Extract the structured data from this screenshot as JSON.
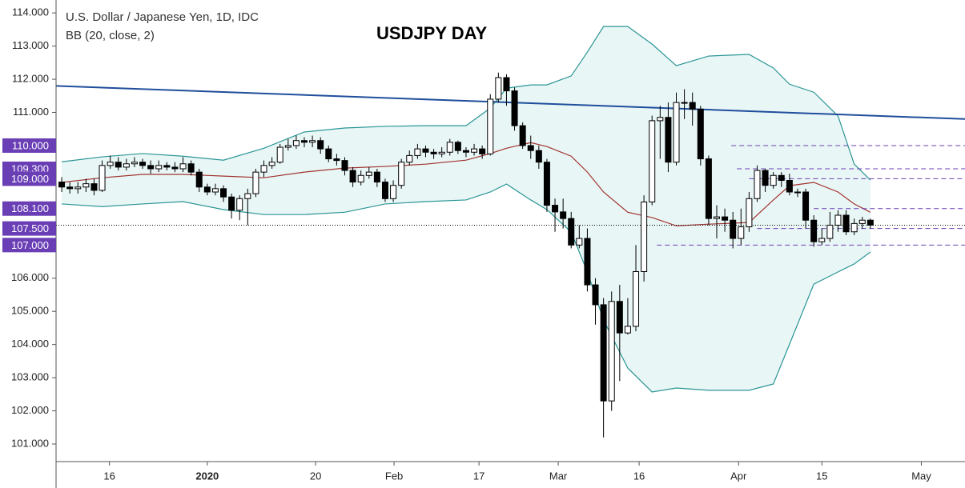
{
  "chart_data": {
    "type": "candlestick",
    "title": "USDJPY DAY",
    "subtitle": "U.S. Dollar / Japanese Yen, 1D, IDC",
    "indicator": "BB (20, close, 2)",
    "up_color": "#ffffff",
    "down_color": "#000000",
    "open": [
      108.9,
      108.75,
      108.7,
      108.75,
      108.85,
      108.65,
      109.4,
      109.5,
      109.35,
      109.45,
      109.5,
      109.4,
      109.3,
      109.4,
      109.35,
      109.3,
      109.45,
      109.2,
      108.75,
      108.6,
      108.7,
      108.45,
      108.05,
      108.4,
      108.55,
      109.2,
      109.4,
      109.5,
      109.95,
      110.0,
      110.15,
      110.1,
      110.15,
      109.9,
      109.6,
      109.55,
      109.25,
      108.9,
      109.1,
      109.2,
      108.9,
      108.4,
      108.8,
      109.5,
      109.7,
      109.9,
      109.8,
      109.75,
      109.8,
      110.1,
      109.85,
      109.8,
      109.9,
      109.75,
      111.4,
      112.05,
      111.65,
      110.6,
      110.0,
      109.85,
      109.5,
      108.2,
      108.0,
      107.8,
      107.0,
      107.2,
      105.8,
      105.2,
      102.3,
      105.3,
      104.35,
      104.55,
      106.2,
      108.3,
      110.75,
      110.85,
      109.5,
      111.3,
      111.3,
      111.1,
      109.6,
      107.8,
      107.85,
      107.75,
      107.2,
      107.55,
      108.4,
      109.25,
      108.8,
      109.1,
      108.95,
      108.6,
      108.6,
      107.75,
      107.1,
      107.2,
      107.6,
      107.9,
      107.4,
      107.65,
      107.75
    ],
    "high": [
      109.05,
      108.9,
      108.9,
      109.0,
      109.0,
      109.55,
      109.7,
      109.65,
      109.6,
      109.65,
      109.6,
      109.55,
      109.55,
      109.5,
      109.5,
      109.65,
      109.55,
      109.3,
      108.85,
      108.85,
      108.8,
      108.55,
      108.5,
      108.7,
      109.3,
      109.55,
      109.65,
      110.05,
      110.2,
      110.3,
      110.25,
      110.3,
      110.25,
      110.0,
      109.75,
      109.65,
      109.35,
      109.25,
      109.35,
      109.3,
      109.0,
      108.95,
      109.6,
      109.85,
      110.05,
      110.0,
      109.9,
      109.95,
      110.2,
      110.15,
      109.95,
      110.05,
      110.0,
      111.55,
      112.2,
      112.15,
      111.75,
      110.7,
      110.3,
      110.0,
      109.6,
      108.4,
      108.4,
      108.0,
      107.6,
      107.5,
      106.0,
      105.4,
      105.6,
      105.8,
      105.4,
      107.0,
      108.5,
      110.9,
      111.2,
      111.3,
      111.6,
      111.7,
      111.6,
      111.2,
      109.7,
      108.2,
      108.1,
      108.0,
      108.1,
      108.6,
      109.4,
      109.3,
      109.2,
      109.2,
      109.15,
      108.7,
      108.7,
      107.9,
      107.5,
      108.0,
      108.05,
      108.05,
      107.8,
      107.85,
      107.8
    ],
    "low": [
      108.6,
      108.55,
      108.55,
      108.6,
      108.5,
      108.6,
      109.3,
      109.25,
      109.25,
      109.35,
      109.3,
      109.15,
      109.2,
      109.25,
      109.2,
      109.2,
      109.1,
      108.6,
      108.5,
      108.5,
      108.3,
      107.8,
      107.75,
      107.6,
      108.45,
      109.05,
      109.3,
      109.45,
      109.85,
      109.9,
      109.95,
      109.95,
      109.75,
      109.5,
      109.4,
      109.1,
      108.75,
      108.8,
      109.0,
      108.75,
      108.3,
      108.3,
      108.7,
      109.4,
      109.6,
      109.65,
      109.6,
      109.65,
      109.7,
      109.75,
      109.65,
      109.7,
      109.6,
      109.7,
      111.3,
      111.2,
      110.45,
      109.9,
      109.6,
      109.3,
      108.0,
      107.4,
      107.5,
      106.9,
      106.9,
      105.6,
      104.6,
      101.2,
      102.0,
      102.9,
      104.3,
      104.4,
      105.9,
      108.2,
      109.6,
      109.2,
      109.4,
      110.8,
      110.6,
      109.4,
      107.6,
      107.2,
      107.4,
      106.9,
      107.0,
      107.4,
      108.3,
      108.6,
      108.7,
      108.75,
      108.5,
      108.45,
      107.5,
      106.95,
      107.0,
      107.1,
      107.4,
      107.3,
      107.3,
      107.5,
      107.5
    ],
    "close": [
      108.75,
      108.7,
      108.75,
      108.85,
      108.65,
      109.4,
      109.5,
      109.35,
      109.45,
      109.5,
      109.4,
      109.3,
      109.4,
      109.35,
      109.3,
      109.45,
      109.2,
      108.75,
      108.6,
      108.7,
      108.45,
      108.05,
      108.4,
      108.55,
      109.2,
      109.4,
      109.5,
      109.95,
      110.0,
      110.15,
      110.1,
      110.15,
      109.9,
      109.6,
      109.55,
      109.25,
      108.9,
      109.1,
      109.2,
      108.9,
      108.4,
      108.8,
      109.5,
      109.7,
      109.9,
      109.8,
      109.75,
      109.8,
      110.1,
      109.85,
      109.8,
      109.9,
      109.75,
      111.4,
      112.05,
      111.65,
      110.6,
      110.0,
      109.85,
      109.5,
      108.2,
      108.0,
      107.8,
      107.0,
      107.2,
      105.8,
      105.2,
      102.3,
      105.3,
      104.35,
      104.55,
      106.2,
      108.3,
      110.75,
      110.85,
      109.5,
      111.3,
      111.3,
      111.1,
      109.6,
      107.8,
      107.85,
      107.75,
      107.2,
      107.55,
      108.4,
      109.25,
      108.8,
      109.1,
      108.95,
      108.6,
      108.6,
      107.75,
      107.1,
      107.2,
      107.6,
      107.9,
      107.4,
      107.65,
      107.75,
      107.6
    ],
    "bands": {
      "x": [
        0,
        5,
        10,
        15,
        20,
        25,
        30,
        35,
        40,
        45,
        50,
        53,
        55,
        58,
        60,
        63,
        65,
        67,
        70,
        73,
        76,
        80,
        85,
        88,
        90,
        93,
        96,
        98,
        100
      ],
      "upper": [
        109.51,
        109.66,
        109.76,
        109.68,
        109.56,
        109.92,
        110.41,
        110.53,
        110.58,
        110.6,
        110.6,
        111.13,
        111.73,
        111.83,
        111.83,
        112.1,
        112.82,
        113.59,
        113.59,
        113.06,
        112.41,
        112.7,
        112.75,
        112.34,
        111.85,
        111.61,
        110.89,
        109.44,
        108.96
      ],
      "middle": [
        108.89,
        109.03,
        109.13,
        109.13,
        109.08,
        109.03,
        109.2,
        109.32,
        109.37,
        109.44,
        109.56,
        109.76,
        109.92,
        110.09,
        109.97,
        109.68,
        109.2,
        108.6,
        107.99,
        107.83,
        107.58,
        107.63,
        107.68,
        108.36,
        108.79,
        108.89,
        108.6,
        108.24,
        107.99
      ],
      "lower": [
        108.24,
        108.16,
        108.24,
        108.31,
        108.07,
        107.92,
        107.92,
        107.99,
        108.24,
        108.31,
        108.36,
        108.6,
        108.84,
        108.36,
        108.07,
        107.39,
        106.19,
        104.74,
        103.29,
        102.57,
        102.69,
        102.62,
        102.62,
        102.81,
        104.01,
        105.82,
        106.19,
        106.43,
        106.79
      ],
      "band_color": "#2b9595",
      "middle_color": "#a0332f",
      "fill_color": "#e9f6f6"
    },
    "trendline": {
      "x": [
        -0.7,
        111.7
      ],
      "values": [
        111.8,
        110.8
      ],
      "color": "#1f4e9c"
    },
    "levels": [
      {
        "value": 110,
        "label": "110.000",
        "x_start": 82.8
      },
      {
        "value": 109.3,
        "label": "109.300",
        "x_start": 83.5
      },
      {
        "value": 109,
        "label": "109.000",
        "x_start": 85
      },
      {
        "value": 108.1,
        "label": "108.100",
        "x_start": 93
      },
      {
        "value": 107.5,
        "label": "107.500",
        "x_start": 86
      },
      {
        "value": 107,
        "label": "107.000",
        "x_start": 73.6
      }
    ],
    "level_color": "#6a3fb5",
    "last_price": 107.6,
    "xlim": [
      -0.7,
      111.7
    ],
    "xticks": [
      {
        "value": 5.9,
        "label": "16"
      },
      {
        "value": 18,
        "label": "2020"
      },
      {
        "value": 31.4,
        "label": "20"
      },
      {
        "value": 41.1,
        "label": "Feb"
      },
      {
        "value": 51.6,
        "label": "17"
      },
      {
        "value": 61.4,
        "label": "Mar"
      },
      {
        "value": 71.4,
        "label": "16"
      },
      {
        "value": 83.7,
        "label": "Apr"
      },
      {
        "value": 94,
        "label": "15"
      },
      {
        "value": 106.3,
        "label": "May"
      }
    ],
    "ylim": [
      100.47,
      114.39
    ],
    "yticks": [
      {
        "value": 114,
        "label": "114.000"
      },
      {
        "value": 113,
        "label": "113.000"
      },
      {
        "value": 112,
        "label": "112.000"
      },
      {
        "value": 111,
        "label": "111.000"
      },
      {
        "value": 106,
        "label": "106.000"
      },
      {
        "value": 105,
        "label": "105.000"
      },
      {
        "value": 104,
        "label": "104.000"
      },
      {
        "value": 103,
        "label": "103.000"
      },
      {
        "value": 102,
        "label": "102.000"
      },
      {
        "value": 101,
        "label": "101.000"
      }
    ]
  }
}
